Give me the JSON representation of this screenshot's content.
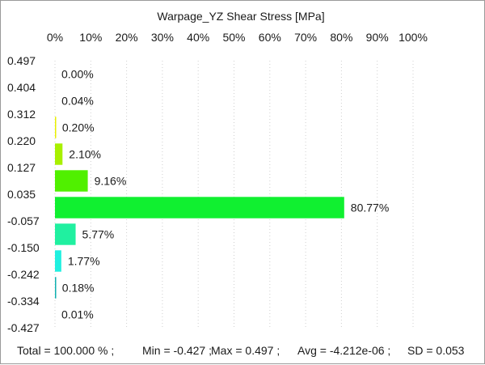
{
  "chart_data": {
    "type": "bar",
    "orientation": "horizontal",
    "title": "Warpage_YZ Shear Stress [MPa]",
    "x_ticks": [
      "0%",
      "10%",
      "20%",
      "30%",
      "40%",
      "50%",
      "60%",
      "70%",
      "80%",
      "90%",
      "100%"
    ],
    "xlim": [
      0,
      100
    ],
    "y_ticks": [
      "0.497",
      "0.404",
      "0.312",
      "0.220",
      "0.127",
      "0.035",
      "-0.057",
      "-0.150",
      "-0.242",
      "-0.334",
      "-0.427"
    ],
    "bins": [
      {
        "value": 0.0,
        "label": "0.00%",
        "color": "#ffffff"
      },
      {
        "value": 0.04,
        "label": "0.04%",
        "color": "#f4f4b0"
      },
      {
        "value": 0.2,
        "label": "0.20%",
        "color": "#e8f000"
      },
      {
        "value": 2.1,
        "label": "2.10%",
        "color": "#a8f000"
      },
      {
        "value": 9.16,
        "label": "9.16%",
        "color": "#50f000"
      },
      {
        "value": 80.77,
        "label": "80.77%",
        "color": "#10f030"
      },
      {
        "value": 5.77,
        "label": "5.77%",
        "color": "#20f0a0"
      },
      {
        "value": 1.77,
        "label": "1.77%",
        "color": "#20f0e0"
      },
      {
        "value": 0.18,
        "label": "0.18%",
        "color": "#10b0b0"
      },
      {
        "value": 0.01,
        "label": "0.01%",
        "color": "#2060f0"
      }
    ],
    "grid": true
  },
  "footer": {
    "total": "Total = 100.000 % ;",
    "min": "Min = -0.427 ;",
    "max": "Max = 0.497 ;",
    "avg": "Avg = -4.212e-06 ;",
    "sd": "SD = 0.053"
  }
}
